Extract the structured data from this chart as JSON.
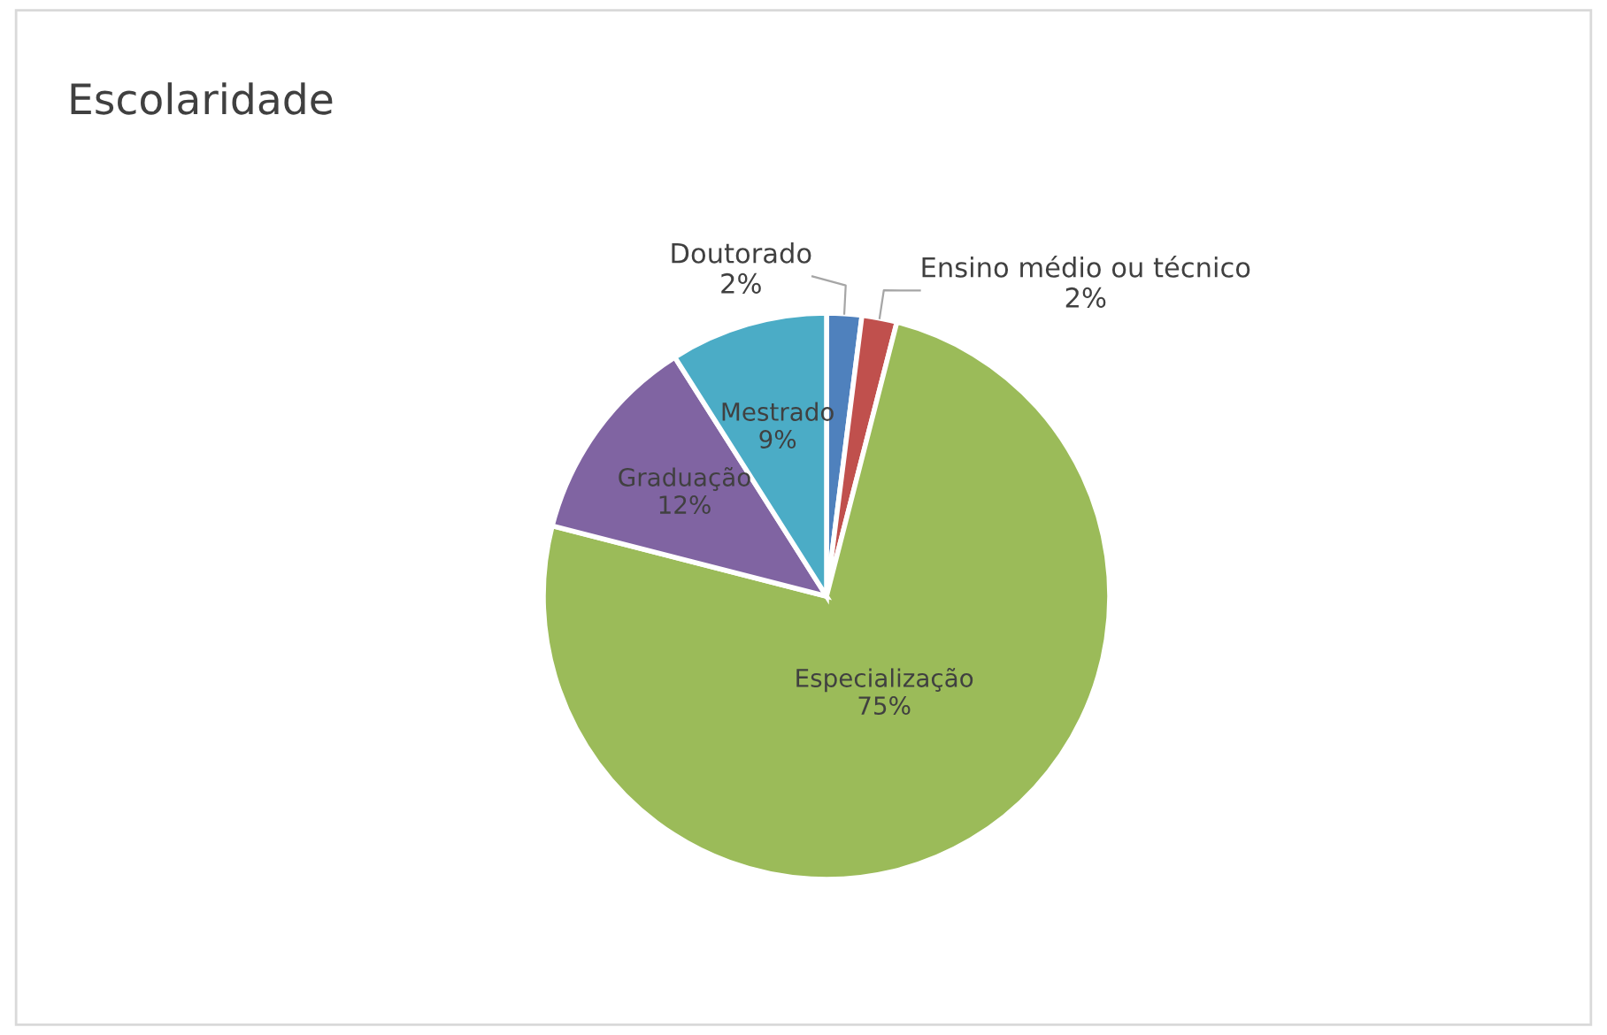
{
  "chart_data": {
    "type": "pie",
    "title": "Escolaridade",
    "categories": [
      "Doutorado",
      "Ensino médio ou técnico",
      "Especialização",
      "Graduação",
      "Mestrado"
    ],
    "values": [
      2,
      2,
      75,
      12,
      9
    ],
    "value_labels": [
      "2%",
      "2%",
      "75%",
      "12%",
      "9%"
    ],
    "colors": [
      "#4f81bd",
      "#c0504d",
      "#9bbb59",
      "#8064a2",
      "#4bacc6"
    ],
    "legend": false
  }
}
